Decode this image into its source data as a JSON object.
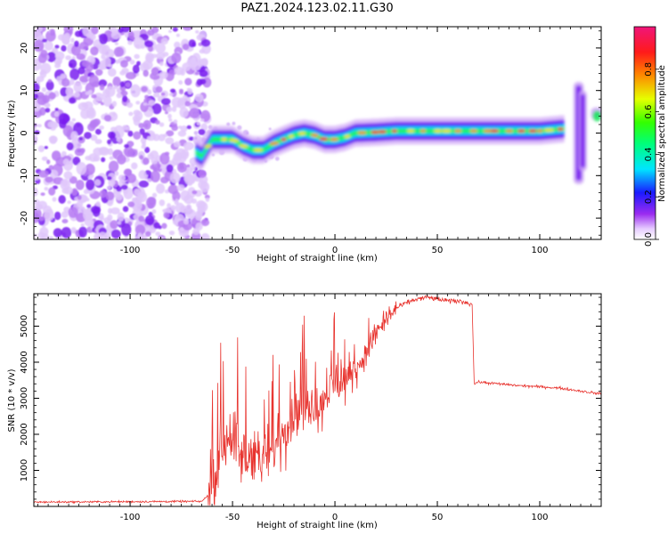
{
  "title": "PAZ1.2024.123.02.11.G30",
  "chart_data": [
    {
      "type": "heatmap",
      "xlabel": "Height of straight line (km)",
      "ylabel": "Frequency (Hz)",
      "xlim": [
        -147,
        130
      ],
      "ylim": [
        -25,
        25
      ],
      "xticks": [
        "-100",
        "-50",
        "0",
        "50",
        "100"
      ],
      "yticks": [
        "-20",
        "-10",
        "0",
        "10",
        "20"
      ],
      "colorbar": {
        "label": "Normalized spectral amplitude",
        "range": [
          0,
          1
        ],
        "ticks": [
          "0.0",
          "0.2",
          "0.4",
          "0.6",
          "0.8"
        ],
        "colormap": "gist_ncar-like (white-purple-blue-cyan-green-yellow-red-pink)"
      },
      "ridge": {
        "x": [
          -68,
          -65,
          -60,
          -55,
          -50,
          -45,
          -40,
          -35,
          -30,
          -25,
          -20,
          -15,
          -10,
          -5,
          0,
          5,
          10,
          20,
          30,
          40,
          60,
          80,
          100,
          112
        ],
        "y": [
          -4.5,
          -5.5,
          -1.5,
          -1.5,
          -1.5,
          -3,
          -4,
          -4,
          -2.5,
          -1.5,
          -0.5,
          0,
          -0.5,
          -1.5,
          -1.5,
          -1,
          0,
          0.2,
          0.5,
          0.5,
          0.5,
          0.5,
          0.5,
          1
        ]
      },
      "noise_region_x": [
        -147,
        -68
      ]
    },
    {
      "type": "line",
      "xlabel": "Height of straight line (km)",
      "ylabel": "SNR (10 * v/v)",
      "xlim": [
        -147,
        130
      ],
      "ylim": [
        0,
        5900
      ],
      "xticks": [
        "-100",
        "-50",
        "0",
        "50",
        "100"
      ],
      "yticks": [
        "1000",
        "2000",
        "3000",
        "4000",
        "5000"
      ],
      "color": "#e8342f",
      "series": [
        {
          "x": [
            -147,
            -100,
            -65,
            -62,
            -58,
            -55,
            -50,
            -45,
            -40,
            -35,
            -30,
            -25,
            -20,
            -15,
            -10,
            -5,
            0,
            5,
            10,
            15,
            20,
            25,
            30,
            35,
            40,
            45,
            50,
            55,
            60,
            65,
            67,
            68,
            70,
            80,
            90,
            100,
            110,
            120,
            130
          ],
          "y": [
            120,
            130,
            140,
            300,
            800,
            1800,
            2000,
            1300,
            1500,
            1200,
            1600,
            2100,
            2500,
            2800,
            2800,
            3000,
            3400,
            3500,
            3800,
            4200,
            4800,
            5200,
            5500,
            5650,
            5750,
            5800,
            5750,
            5700,
            5700,
            5650,
            5600,
            3400,
            3450,
            3400,
            3350,
            3320,
            3280,
            3200,
            3120
          ]
        }
      ]
    }
  ]
}
